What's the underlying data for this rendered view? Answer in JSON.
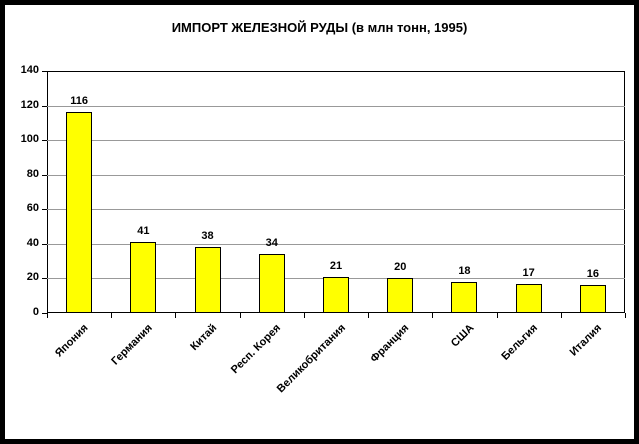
{
  "chart_data": {
    "type": "bar",
    "title": "ИМПОРТ ЖЕЛЕЗНОЙ РУДЫ (в млн тонн, 1995)",
    "categories": [
      "Япония",
      "Германия",
      "Китай",
      "Респ. Корея",
      "Великобритания",
      "Франция",
      "США",
      "Бельгия",
      "Италия"
    ],
    "values": [
      116,
      41,
      38,
      34,
      21,
      20,
      18,
      17,
      16
    ],
    "xlabel": "",
    "ylabel": "",
    "ylim": [
      0,
      140
    ],
    "yticks": [
      0,
      20,
      40,
      60,
      80,
      100,
      120,
      140
    ],
    "grid": true,
    "legend": "none",
    "bar_color": "#FFFF00",
    "bar_border_color": "#000000",
    "gridline_color": "#999999",
    "axis_color": "#000000",
    "background": "#FFFFFF",
    "frame_color": "#000000"
  }
}
